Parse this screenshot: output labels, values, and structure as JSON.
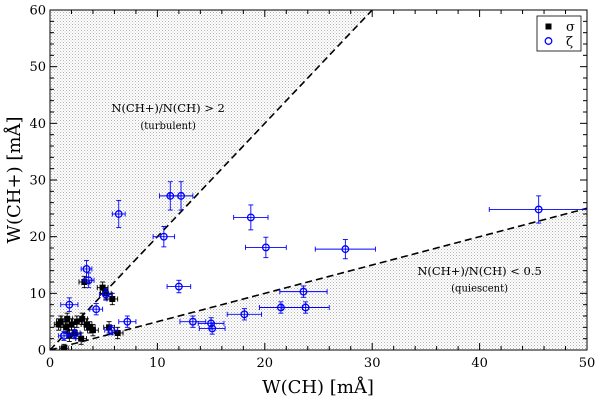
{
  "chart_data": {
    "type": "scatter",
    "xlabel": "W(CH) [mÅ]",
    "ylabel": "W(CH+) [mÅ]",
    "xlim": [
      0,
      50
    ],
    "ylim": [
      0,
      60
    ],
    "xticks": [
      0,
      10,
      20,
      30,
      40,
      50
    ],
    "yticks": [
      0,
      10,
      20,
      30,
      40,
      50,
      60
    ],
    "xtick_labels": [
      "0",
      "10",
      "20",
      "30",
      "40",
      "50"
    ],
    "ytick_labels": [
      "0",
      "10",
      "20",
      "30",
      "40",
      "50",
      "60"
    ],
    "legend": {
      "position": "top-right",
      "entries": [
        {
          "label": "σ",
          "marker": "filled-square",
          "color": "#000000"
        },
        {
          "label": "ζ",
          "marker": "open-circle",
          "color": "#0000ff"
        }
      ]
    },
    "reference_lines": [
      {
        "name": "turbulent-boundary",
        "ratio": 2,
        "style": "dashed",
        "color": "#000000"
      },
      {
        "name": "quiescent-boundary",
        "ratio": 0.5,
        "style": "dashed",
        "color": "#000000"
      }
    ],
    "annotations": [
      {
        "name": "turbulent-ratio",
        "text": "N(CH+)/N(CH) > 2",
        "x": 11,
        "y": 42
      },
      {
        "name": "turbulent-label",
        "text": "(turbulent)",
        "x": 11,
        "y": 39
      },
      {
        "name": "quiescent-ratio",
        "text": "N(CH+)/N(CH) < 0.5",
        "x": 40,
        "y": 13.2
      },
      {
        "name": "quiescent-label",
        "text": "(quiescent)",
        "x": 40,
        "y": 10.3
      }
    ],
    "series": [
      {
        "name": "σ",
        "color": "#000000",
        "marker": "filled-square",
        "points": [
          {
            "x": 0.8,
            "y": 4.5,
            "xerr": 0.4,
            "yerr": 1.0
          },
          {
            "x": 1.0,
            "y": 5.0,
            "xerr": 0.4,
            "yerr": 1.0
          },
          {
            "x": 1.3,
            "y": 0.3,
            "xerr": 0.4,
            "yerr": 0.7
          },
          {
            "x": 1.5,
            "y": 4.0,
            "xerr": 0.5,
            "yerr": 1.0
          },
          {
            "x": 1.6,
            "y": 5.5,
            "xerr": 0.5,
            "yerr": 1.0
          },
          {
            "x": 1.8,
            "y": 2.5,
            "xerr": 0.5,
            "yerr": 1.0
          },
          {
            "x": 2.0,
            "y": 4.5,
            "xerr": 0.5,
            "yerr": 1.0
          },
          {
            "x": 2.3,
            "y": 3.0,
            "xerr": 0.5,
            "yerr": 1.0
          },
          {
            "x": 2.5,
            "y": 5.0,
            "xerr": 0.5,
            "yerr": 1.0
          },
          {
            "x": 2.9,
            "y": 2.0,
            "xerr": 0.5,
            "yerr": 1.0
          },
          {
            "x": 3.0,
            "y": 5.5,
            "xerr": 0.5,
            "yerr": 1.0
          },
          {
            "x": 3.2,
            "y": 12.0,
            "xerr": 0.5,
            "yerr": 1.0
          },
          {
            "x": 3.4,
            "y": 4.5,
            "xerr": 0.5,
            "yerr": 1.0
          },
          {
            "x": 3.7,
            "y": 4.0,
            "xerr": 0.5,
            "yerr": 1.0
          },
          {
            "x": 4.0,
            "y": 3.5,
            "xerr": 0.5,
            "yerr": 1.0
          },
          {
            "x": 4.9,
            "y": 11.0,
            "xerr": 0.5,
            "yerr": 1.0
          },
          {
            "x": 5.2,
            "y": 10.0,
            "xerr": 0.5,
            "yerr": 1.0
          },
          {
            "x": 5.5,
            "y": 4.0,
            "xerr": 0.5,
            "yerr": 1.0
          },
          {
            "x": 5.8,
            "y": 9.0,
            "xerr": 0.5,
            "yerr": 1.0
          },
          {
            "x": 6.3,
            "y": 3.0,
            "xerr": 0.5,
            "yerr": 1.0
          }
        ]
      },
      {
        "name": "ζ",
        "color": "#0000ff",
        "marker": "open-circle",
        "points": [
          {
            "x": 1.3,
            "y": 2.5,
            "xerr": 0.5,
            "yerr": 0.8
          },
          {
            "x": 1.8,
            "y": 8.0,
            "xerr": 0.8,
            "yerr": 1.2
          },
          {
            "x": 2.3,
            "y": 2.8,
            "xerr": 0.6,
            "yerr": 0.8
          },
          {
            "x": 3.4,
            "y": 14.3,
            "xerr": 0.5,
            "yerr": 1.5
          },
          {
            "x": 3.6,
            "y": 12.3,
            "xerr": 0.5,
            "yerr": 1.3
          },
          {
            "x": 4.3,
            "y": 7.2,
            "xerr": 0.6,
            "yerr": 1.0
          },
          {
            "x": 5.2,
            "y": 9.8,
            "xerr": 0.6,
            "yerr": 1.0
          },
          {
            "x": 5.7,
            "y": 3.5,
            "xerr": 0.6,
            "yerr": 0.8
          },
          {
            "x": 6.4,
            "y": 24.0,
            "xerr": 0.6,
            "yerr": 2.4
          },
          {
            "x": 7.2,
            "y": 5.0,
            "xerr": 0.8,
            "yerr": 1.0
          },
          {
            "x": 10.6,
            "y": 20.0,
            "xerr": 1.0,
            "yerr": 1.8
          },
          {
            "x": 11.2,
            "y": 27.2,
            "xerr": 1.0,
            "yerr": 2.5
          },
          {
            "x": 12.0,
            "y": 11.2,
            "xerr": 1.1,
            "yerr": 1.1
          },
          {
            "x": 12.2,
            "y": 27.2,
            "xerr": 1.1,
            "yerr": 2.5
          },
          {
            "x": 13.3,
            "y": 5.0,
            "xerr": 1.2,
            "yerr": 1.0
          },
          {
            "x": 15.0,
            "y": 4.7,
            "xerr": 1.2,
            "yerr": 1.0
          },
          {
            "x": 15.1,
            "y": 3.8,
            "xerr": 1.2,
            "yerr": 1.0
          },
          {
            "x": 18.1,
            "y": 6.3,
            "xerr": 1.6,
            "yerr": 1.0
          },
          {
            "x": 18.7,
            "y": 23.4,
            "xerr": 1.6,
            "yerr": 2.2
          },
          {
            "x": 20.1,
            "y": 18.1,
            "xerr": 1.9,
            "yerr": 1.8
          },
          {
            "x": 21.5,
            "y": 7.5,
            "xerr": 2.0,
            "yerr": 1.0
          },
          {
            "x": 23.6,
            "y": 10.3,
            "xerr": 2.2,
            "yerr": 1.0
          },
          {
            "x": 23.8,
            "y": 7.5,
            "xerr": 2.2,
            "yerr": 1.0
          },
          {
            "x": 27.5,
            "y": 17.8,
            "xerr": 2.8,
            "yerr": 1.7
          },
          {
            "x": 45.5,
            "y": 24.8,
            "xerr": 4.6,
            "yerr": 2.4
          }
        ]
      }
    ]
  }
}
